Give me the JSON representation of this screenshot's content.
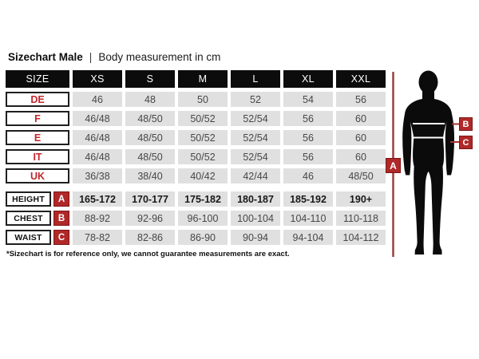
{
  "title": {
    "product": "Sizechart Male",
    "separator": "|",
    "subtitle": "Body measurement in cm"
  },
  "table": {
    "header": [
      "SIZE",
      "XS",
      "S",
      "M",
      "L",
      "XL",
      "XXL"
    ],
    "size_rows": [
      {
        "label": "DE",
        "values": [
          "46",
          "48",
          "50",
          "52",
          "54",
          "56"
        ]
      },
      {
        "label": "F",
        "values": [
          "46/48",
          "48/50",
          "50/52",
          "52/54",
          "56",
          "60"
        ]
      },
      {
        "label": "E",
        "values": [
          "46/48",
          "48/50",
          "50/52",
          "52/54",
          "56",
          "60"
        ]
      },
      {
        "label": "IT",
        "values": [
          "46/48",
          "48/50",
          "50/52",
          "52/54",
          "56",
          "60"
        ]
      },
      {
        "label": "UK",
        "values": [
          "36/38",
          "38/40",
          "40/42",
          "42/44",
          "46",
          "48/50"
        ]
      }
    ],
    "measure_rows": [
      {
        "label": "HEIGHT",
        "badge": "A",
        "bold": true,
        "values": [
          "165-172",
          "170-177",
          "175-182",
          "180-187",
          "185-192",
          "190+"
        ]
      },
      {
        "label": "CHEST",
        "badge": "B",
        "bold": false,
        "values": [
          "88-92",
          "92-96",
          "96-100",
          "100-104",
          "104-110",
          "110-118"
        ]
      },
      {
        "label": "WAIST",
        "badge": "C",
        "bold": false,
        "values": [
          "78-82",
          "82-86",
          "86-90",
          "90-94",
          "94-104",
          "104-112"
        ]
      }
    ]
  },
  "figure": {
    "height_badge": "A",
    "chest_badge": "B",
    "waist_badge": "C"
  },
  "footnote": "*Sizechart is for reference only, we cannot guarantee measurements are exact.",
  "colors": {
    "header_black": "#0c0c0c",
    "cell_gray": "#e0e0e0",
    "label_red": "#c1272d",
    "badge_red": "#b02828",
    "badge_border": "#7d1717",
    "measure_line_red": "#9a4141",
    "silhouette_black": "#0b0b0b"
  },
  "chart_data": {
    "type": "table",
    "title": "Sizechart Male | Body measurement in cm",
    "columns": [
      "SIZE",
      "XS",
      "S",
      "M",
      "L",
      "XL",
      "XXL"
    ],
    "rows": [
      [
        "DE",
        "46",
        "48",
        "50",
        "52",
        "54",
        "56"
      ],
      [
        "F",
        "46/48",
        "48/50",
        "50/52",
        "52/54",
        "56",
        "60"
      ],
      [
        "E",
        "46/48",
        "48/50",
        "50/52",
        "52/54",
        "56",
        "60"
      ],
      [
        "IT",
        "46/48",
        "48/50",
        "50/52",
        "52/54",
        "56",
        "60"
      ],
      [
        "UK",
        "36/38",
        "38/40",
        "40/42",
        "42/44",
        "46",
        "48/50"
      ],
      [
        "HEIGHT (A)",
        "165-172",
        "170-177",
        "175-182",
        "180-187",
        "185-192",
        "190+"
      ],
      [
        "CHEST (B)",
        "88-92",
        "92-96",
        "96-100",
        "100-104",
        "104-110",
        "110-118"
      ],
      [
        "WAIST (C)",
        "78-82",
        "82-86",
        "86-90",
        "90-94",
        "94-104",
        "104-112"
      ]
    ],
    "footnote": "*Sizechart is for reference only, we cannot guarantee measurements are exact."
  }
}
